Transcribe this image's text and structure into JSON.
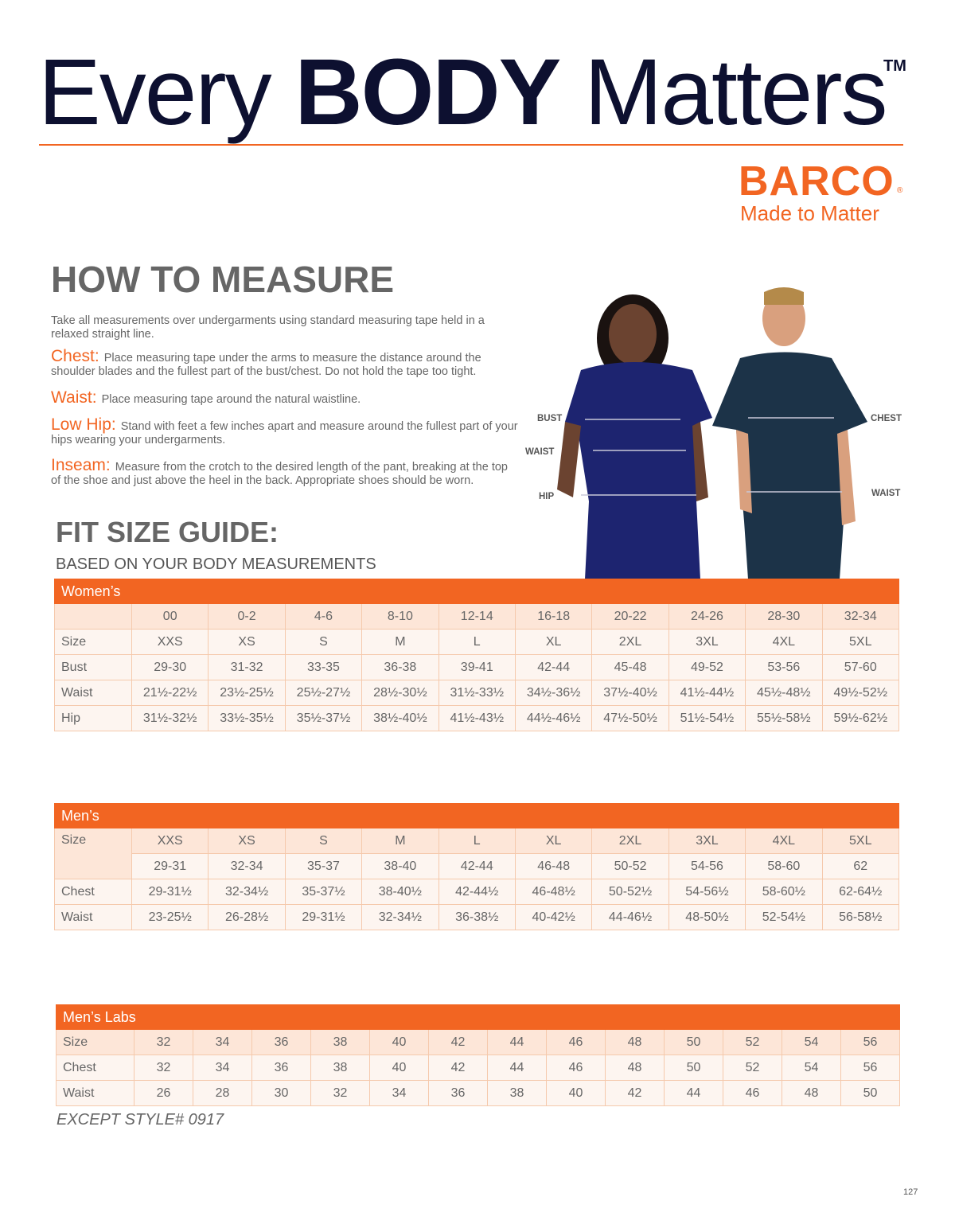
{
  "header": {
    "every": "Every ",
    "body": "BODY",
    "matters": " Matters",
    "tm": "TM"
  },
  "brand": {
    "name": "BARCO",
    "reg": "®",
    "tagline": "Made to Matter",
    "color": "#f26522"
  },
  "how_to_measure": {
    "title": "HOW TO MEASURE",
    "intro": "Take all measurements over undergarments using standard measuring tape held in a relaxed straight line.",
    "items": [
      {
        "key": "Chest:",
        "text": "Place measuring tape under the arms to measure the distance around the shoulder blades and the fullest part of the bust/chest. Do not hold the tape too tight."
      },
      {
        "key": "Waist:",
        "text": "Place measuring tape around the natural waistline."
      },
      {
        "key": "Low Hip:",
        "text": "Stand with feet a few inches apart and measure around the fullest part of your hips wearing your undergarments."
      },
      {
        "key": "Inseam:",
        "text": "Measure from the crotch to the desired length of the pant, breaking at the top of the shoe and just above the heel in the back. Appropriate shoes should be worn."
      }
    ]
  },
  "figure_labels": {
    "bust": "BUST",
    "waist_w": "WAIST",
    "hip": "HIP",
    "chest": "CHEST",
    "waist_m": "WAIST"
  },
  "fit": {
    "title": "FIT SIZE GUIDE:",
    "subtitle": "BASED ON YOUR BODY MEASUREMENTS"
  },
  "womens": {
    "title": "Women’s",
    "rows": [
      [
        "",
        "00",
        "0-2",
        "4-6",
        "8-10",
        "12-14",
        "16-18",
        "20-22",
        "24-26",
        "28-30",
        "32-34"
      ],
      [
        "Size",
        "XXS",
        "XS",
        "S",
        "M",
        "L",
        "XL",
        "2XL",
        "3XL",
        "4XL",
        "5XL"
      ],
      [
        "Bust",
        "29-30",
        "31-32",
        "33-35",
        "36-38",
        "39-41",
        "42-44",
        "45-48",
        "49-52",
        "53-56",
        "57-60"
      ],
      [
        "Waist",
        "21½-22½",
        "23½-25½",
        "25½-27½",
        "28½-30½",
        "31½-33½",
        "34½-36½",
        "37½-40½",
        "41½-44½",
        "45½-48½",
        "49½-52½"
      ],
      [
        "Hip",
        "31½-32½",
        "33½-35½",
        "35½-37½",
        "38½-40½",
        "41½-43½",
        "44½-46½",
        "47½-50½",
        "51½-54½",
        "55½-58½",
        "59½-62½"
      ]
    ]
  },
  "mens": {
    "title": "Men’s",
    "size_label": "Size",
    "sizes": [
      "XXS",
      "XS",
      "S",
      "M",
      "L",
      "XL",
      "2XL",
      "3XL",
      "4XL",
      "5XL"
    ],
    "numeric": [
      "29-31",
      "32-34",
      "35-37",
      "38-40",
      "42-44",
      "46-48",
      "50-52",
      "54-56",
      "58-60",
      "62"
    ],
    "rows": [
      [
        "Chest",
        "29-31½",
        "32-34½",
        "35-37½",
        "38-40½",
        "42-44½",
        "46-48½",
        "50-52½",
        "54-56½",
        "58-60½",
        "62-64½"
      ],
      [
        "Waist",
        "23-25½",
        "26-28½",
        "29-31½",
        "32-34½",
        "36-38½",
        "40-42½",
        "44-46½",
        "48-50½",
        "52-54½",
        "56-58½"
      ]
    ]
  },
  "mens_labs": {
    "title": "Men’s Labs",
    "rows": [
      [
        "Size",
        "32",
        "34",
        "36",
        "38",
        "40",
        "42",
        "44",
        "46",
        "48",
        "50",
        "52",
        "54",
        "56"
      ],
      [
        "Chest",
        "32",
        "34",
        "36",
        "38",
        "40",
        "42",
        "44",
        "46",
        "48",
        "50",
        "52",
        "54",
        "56"
      ],
      [
        "Waist",
        "26",
        "28",
        "30",
        "32",
        "34",
        "36",
        "38",
        "40",
        "42",
        "44",
        "46",
        "48",
        "50"
      ]
    ],
    "note": "EXCEPT STYLE# 0917"
  },
  "page_number": "127"
}
